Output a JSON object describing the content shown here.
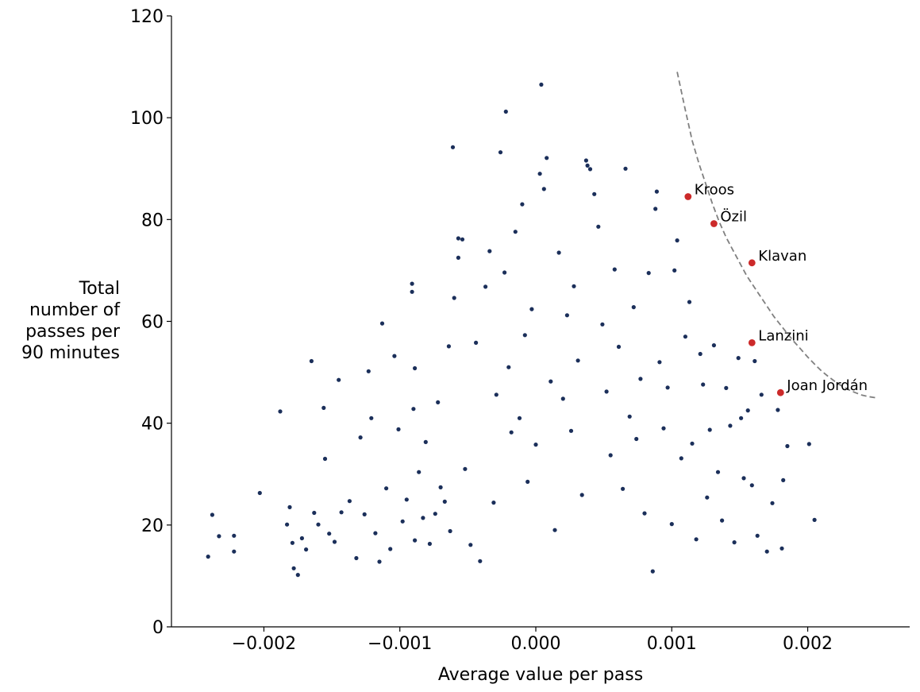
{
  "chart_data": {
    "type": "scatter",
    "xlabel": "Average value per pass",
    "ylabel_lines": [
      "Total",
      "number of",
      "passes per",
      "90 minutes"
    ],
    "xlim": [
      -0.00268,
      0.00275
    ],
    "ylim": [
      0,
      120
    ],
    "xticks": [
      -0.002,
      -0.001,
      0.0,
      0.001,
      0.002
    ],
    "xtick_labels": [
      "−0.002",
      "−0.001",
      "0.000",
      "0.001",
      "0.002"
    ],
    "yticks": [
      0,
      20,
      40,
      60,
      80,
      100,
      120
    ],
    "ytick_labels": [
      "0",
      "20",
      "40",
      "60",
      "80",
      "100",
      "120"
    ],
    "grid": false,
    "colors": {
      "points": "#1b2f5a",
      "highlight": "#cc2a2a",
      "curve": "#808080"
    },
    "highlighted": [
      {
        "name": "Kroos",
        "x": 0.00112,
        "y": 84.5
      },
      {
        "name": "Özil",
        "x": 0.00131,
        "y": 79.2
      },
      {
        "name": "Klavan",
        "x": 0.00159,
        "y": 71.5
      },
      {
        "name": "Lanzini",
        "x": 0.00159,
        "y": 55.8
      },
      {
        "name": "Joan Jordán",
        "x": 0.0018,
        "y": 46.0
      }
    ],
    "frontier_curve": [
      [
        0.00104,
        109
      ],
      [
        0.0011,
        101.5
      ],
      [
        0.00115,
        95.5
      ],
      [
        0.0012,
        91
      ],
      [
        0.00125,
        87
      ],
      [
        0.0013,
        83
      ],
      [
        0.00135,
        79.5
      ],
      [
        0.0014,
        76.5
      ],
      [
        0.00145,
        74
      ],
      [
        0.0015,
        71.5
      ],
      [
        0.00155,
        69
      ],
      [
        0.0016,
        67
      ],
      [
        0.00165,
        65
      ],
      [
        0.0017,
        63
      ],
      [
        0.00175,
        61
      ],
      [
        0.0018,
        59.3
      ],
      [
        0.00185,
        57.6
      ],
      [
        0.0019,
        56
      ],
      [
        0.00195,
        54.5
      ],
      [
        0.002,
        53
      ],
      [
        0.00205,
        51.6
      ],
      [
        0.0021,
        50.3
      ],
      [
        0.00215,
        49.2
      ],
      [
        0.0022,
        48.2
      ],
      [
        0.00225,
        47.3
      ],
      [
        0.0023,
        46.6
      ],
      [
        0.00235,
        46
      ],
      [
        0.0024,
        45.5
      ],
      [
        0.00245,
        45.2
      ],
      [
        0.0025,
        45
      ]
    ],
    "points": [
      [
        -0.00241,
        13.8
      ],
      [
        -0.00238,
        22.0
      ],
      [
        -0.00233,
        17.8
      ],
      [
        -0.00222,
        14.8
      ],
      [
        -0.00222,
        17.9
      ],
      [
        -0.00203,
        26.3
      ],
      [
        -0.00188,
        42.3
      ],
      [
        -0.00183,
        20.1
      ],
      [
        -0.00181,
        23.5
      ],
      [
        -0.00179,
        16.5
      ],
      [
        -0.00178,
        11.5
      ],
      [
        -0.00175,
        10.2
      ],
      [
        -0.00172,
        17.4
      ],
      [
        -0.00169,
        15.2
      ],
      [
        -0.00165,
        52.2
      ],
      [
        -0.00163,
        22.4
      ],
      [
        -0.0016,
        20.1
      ],
      [
        -0.00156,
        43.0
      ],
      [
        -0.00155,
        33.0
      ],
      [
        -0.00152,
        18.3
      ],
      [
        -0.00148,
        16.7
      ],
      [
        -0.00145,
        48.5
      ],
      [
        -0.00143,
        22.5
      ],
      [
        -0.00137,
        24.7
      ],
      [
        -0.00132,
        13.5
      ],
      [
        -0.00129,
        37.2
      ],
      [
        -0.00126,
        22.1
      ],
      [
        -0.00123,
        50.2
      ],
      [
        -0.00121,
        41.0
      ],
      [
        -0.00118,
        18.4
      ],
      [
        -0.00115,
        12.8
      ],
      [
        -0.00113,
        59.6
      ],
      [
        -0.0011,
        27.2
      ],
      [
        -0.00107,
        15.3
      ],
      [
        -0.00104,
        53.2
      ],
      [
        -0.00101,
        38.8
      ],
      [
        -0.00098,
        20.7
      ],
      [
        -0.00095,
        25.0
      ],
      [
        -0.0009,
        42.8
      ],
      [
        -0.00089,
        17.0
      ],
      [
        -0.00086,
        30.4
      ],
      [
        -0.00083,
        21.4
      ],
      [
        -0.00081,
        36.3
      ],
      [
        -0.00078,
        16.3
      ],
      [
        -0.00074,
        22.2
      ],
      [
        -0.00072,
        44.1
      ],
      [
        -0.0007,
        27.4
      ],
      [
        -0.00091,
        67.4
      ],
      [
        -0.00091,
        65.8
      ],
      [
        -0.00089,
        50.8
      ],
      [
        -0.00067,
        24.6
      ],
      [
        -0.00064,
        55.1
      ],
      [
        -0.00063,
        18.8
      ],
      [
        -0.00061,
        94.2
      ],
      [
        -0.0006,
        64.6
      ],
      [
        -0.00057,
        76.3
      ],
      [
        -0.00057,
        72.5
      ],
      [
        -0.00054,
        76.1
      ],
      [
        -0.00052,
        31.0
      ],
      [
        -0.00048,
        16.1
      ],
      [
        -0.00044,
        55.8
      ],
      [
        -0.00041,
        12.9
      ],
      [
        -0.00037,
        66.8
      ],
      [
        -0.00034,
        73.8
      ],
      [
        -0.00031,
        24.4
      ],
      [
        -0.00029,
        45.6
      ],
      [
        -0.00026,
        93.2
      ],
      [
        -0.00023,
        69.6
      ],
      [
        -0.00022,
        101.2
      ],
      [
        -0.0002,
        51.0
      ],
      [
        -0.00018,
        38.2
      ],
      [
        -0.00015,
        77.6
      ],
      [
        -0.00012,
        41.0
      ],
      [
        -0.0001,
        83.0
      ],
      [
        -8e-05,
        57.3
      ],
      [
        -6e-05,
        28.5
      ],
      [
        -3e-05,
        62.4
      ],
      [
        0.0,
        35.8
      ],
      [
        3e-05,
        89.0
      ],
      [
        4e-05,
        106.5
      ],
      [
        6e-05,
        86.0
      ],
      [
        8e-05,
        92.1
      ],
      [
        0.00011,
        48.2
      ],
      [
        0.00014,
        19.0
      ],
      [
        0.00017,
        73.5
      ],
      [
        0.0002,
        44.8
      ],
      [
        0.00023,
        61.2
      ],
      [
        0.00026,
        38.5
      ],
      [
        0.00028,
        66.9
      ],
      [
        0.00031,
        52.3
      ],
      [
        0.00034,
        25.9
      ],
      [
        0.00037,
        91.6
      ],
      [
        0.00038,
        90.6
      ],
      [
        0.0004,
        89.9
      ],
      [
        0.00043,
        85.0
      ],
      [
        0.00046,
        78.6
      ],
      [
        0.00049,
        59.4
      ],
      [
        0.00052,
        46.2
      ],
      [
        0.00055,
        33.7
      ],
      [
        0.00058,
        70.2
      ],
      [
        0.00061,
        55.0
      ],
      [
        0.00064,
        27.1
      ],
      [
        0.00066,
        90.0
      ],
      [
        0.00069,
        41.3
      ],
      [
        0.00072,
        62.8
      ],
      [
        0.00074,
        36.9
      ],
      [
        0.00077,
        48.7
      ],
      [
        0.0008,
        22.3
      ],
      [
        0.00083,
        69.5
      ],
      [
        0.00086,
        10.9
      ],
      [
        0.00088,
        82.1
      ],
      [
        0.00089,
        85.5
      ],
      [
        0.00091,
        52.0
      ],
      [
        0.00094,
        39.0
      ],
      [
        0.00097,
        47.0
      ],
      [
        0.001,
        20.2
      ],
      [
        0.00102,
        70.0
      ],
      [
        0.00104,
        75.9
      ],
      [
        0.00107,
        33.1
      ],
      [
        0.0011,
        57.0
      ],
      [
        0.00113,
        63.8
      ],
      [
        0.00115,
        36.0
      ],
      [
        0.00118,
        17.2
      ],
      [
        0.00121,
        53.6
      ],
      [
        0.00123,
        47.6
      ],
      [
        0.00126,
        25.4
      ],
      [
        0.00128,
        38.7
      ],
      [
        0.00131,
        55.3
      ],
      [
        0.00134,
        30.4
      ],
      [
        0.00137,
        20.9
      ],
      [
        0.0014,
        46.9
      ],
      [
        0.00143,
        39.5
      ],
      [
        0.00146,
        16.6
      ],
      [
        0.00149,
        52.8
      ],
      [
        0.00151,
        41.0
      ],
      [
        0.00153,
        29.2
      ],
      [
        0.00156,
        42.5
      ],
      [
        0.00159,
        27.8
      ],
      [
        0.00161,
        52.2
      ],
      [
        0.00163,
        17.9
      ],
      [
        0.00166,
        45.6
      ],
      [
        0.0017,
        14.8
      ],
      [
        0.00174,
        24.3
      ],
      [
        0.00178,
        42.6
      ],
      [
        0.00181,
        15.4
      ],
      [
        0.00182,
        28.8
      ],
      [
        0.00185,
        35.5
      ],
      [
        0.00201,
        35.9
      ],
      [
        0.00205,
        21.0
      ]
    ]
  }
}
